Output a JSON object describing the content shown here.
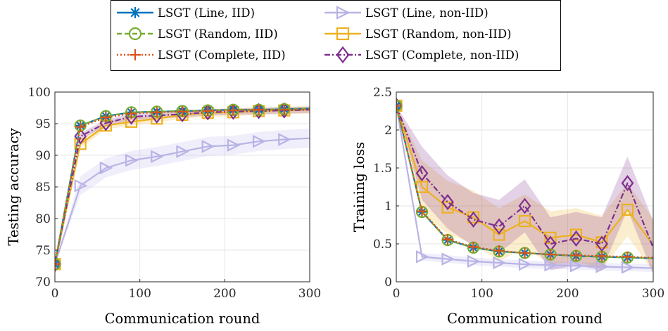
{
  "legend": {
    "entries": [
      {
        "label": "LSGT (Line, IID)",
        "color": "#0072BD",
        "marker": "asterisk",
        "dash": "solid"
      },
      {
        "label": "LSGT (Line, non-IID)",
        "color": "#B8B3E6",
        "marker": "triangle-right",
        "dash": "solid"
      },
      {
        "label": "LSGT (Random, IID)",
        "color": "#77AC30",
        "marker": "circle",
        "dash": "dash"
      },
      {
        "label": "LSGT (Random, non-IID)",
        "color": "#EDB120",
        "marker": "square",
        "dash": "solid"
      },
      {
        "label": "LSGT (Complete, IID)",
        "color": "#D95319",
        "marker": "plus",
        "dash": "dot"
      },
      {
        "label": "LSGT (Complete, non-IID)",
        "color": "#7E2F8E",
        "marker": "diamond",
        "dash": "dashdot"
      }
    ]
  },
  "chart_data": [
    {
      "type": "line",
      "xlabel": "Communication round",
      "ylabel": "Testing accuracy",
      "xlim": [
        0,
        300
      ],
      "ylim": [
        70,
        100
      ],
      "xticks": [
        0,
        100,
        200,
        300
      ],
      "yticks": [
        70,
        75,
        80,
        85,
        90,
        95,
        100
      ],
      "grid": true,
      "x": [
        0,
        30,
        60,
        90,
        120,
        150,
        180,
        210,
        240,
        270,
        300
      ],
      "series": [
        {
          "name": "LSGT (Line, IID)",
          "values": [
            72.8,
            94.7,
            96.2,
            96.8,
            96.9,
            97.0,
            97.1,
            97.2,
            97.2,
            97.3,
            97.4
          ]
        },
        {
          "name": "LSGT (Random, IID)",
          "values": [
            72.8,
            94.7,
            96.2,
            96.8,
            96.9,
            97.0,
            97.1,
            97.2,
            97.2,
            97.3,
            97.4
          ]
        },
        {
          "name": "LSGT (Complete, IID)",
          "values": [
            72.8,
            94.5,
            96.0,
            96.6,
            96.8,
            96.9,
            97.0,
            97.1,
            97.2,
            97.2,
            97.3
          ]
        },
        {
          "name": "LSGT (Line, non-IID)",
          "values": [
            72.8,
            85.2,
            88.0,
            89.2,
            89.8,
            90.6,
            91.4,
            91.6,
            92.2,
            92.5,
            92.7
          ],
          "band": 1.5
        },
        {
          "name": "LSGT (Random, non-IID)",
          "values": [
            72.8,
            91.8,
            94.7,
            95.3,
            95.8,
            96.4,
            96.7,
            96.8,
            97.0,
            97.1,
            97.2
          ],
          "band": 0.6
        },
        {
          "name": "LSGT (Complete, non-IID)",
          "values": [
            72.8,
            93.0,
            95.1,
            96.1,
            96.3,
            96.5,
            96.8,
            96.9,
            97.0,
            97.1,
            97.2
          ],
          "band": 0.5
        }
      ]
    },
    {
      "type": "line",
      "xlabel": "Communication round",
      "ylabel": "Training loss",
      "xlim": [
        0,
        300
      ],
      "ylim": [
        0,
        2.5
      ],
      "xticks": [
        0,
        100,
        200,
        300
      ],
      "yticks": [
        0,
        0.5,
        1,
        1.5,
        2,
        2.5
      ],
      "grid": true,
      "x": [
        0,
        30,
        60,
        90,
        120,
        150,
        180,
        210,
        240,
        270,
        300
      ],
      "series": [
        {
          "name": "LSGT (Line, IID)",
          "values": [
            2.32,
            0.92,
            0.55,
            0.45,
            0.4,
            0.38,
            0.36,
            0.34,
            0.33,
            0.32,
            0.31
          ]
        },
        {
          "name": "LSGT (Random, IID)",
          "values": [
            2.32,
            0.92,
            0.55,
            0.45,
            0.4,
            0.38,
            0.36,
            0.34,
            0.33,
            0.32,
            0.31
          ]
        },
        {
          "name": "LSGT (Complete, IID)",
          "values": [
            2.32,
            0.93,
            0.56,
            0.46,
            0.41,
            0.38,
            0.36,
            0.35,
            0.34,
            0.33,
            0.32
          ]
        },
        {
          "name": "LSGT (Line, non-IID)",
          "values": [
            2.32,
            0.33,
            0.3,
            0.27,
            0.25,
            0.23,
            0.22,
            0.21,
            0.2,
            0.19,
            0.18
          ],
          "band": 0.05
        },
        {
          "name": "LSGT (Random, non-IID)",
          "values": [
            2.32,
            1.25,
            0.98,
            0.85,
            0.62,
            0.8,
            0.58,
            0.62,
            0.52,
            0.95,
            0.48
          ],
          "band": 0.35
        },
        {
          "name": "LSGT (Complete, non-IID)",
          "values": [
            2.32,
            1.43,
            1.05,
            0.82,
            0.73,
            1.0,
            0.5,
            0.57,
            0.5,
            1.3,
            0.45
          ],
          "band": 0.35
        }
      ]
    }
  ]
}
